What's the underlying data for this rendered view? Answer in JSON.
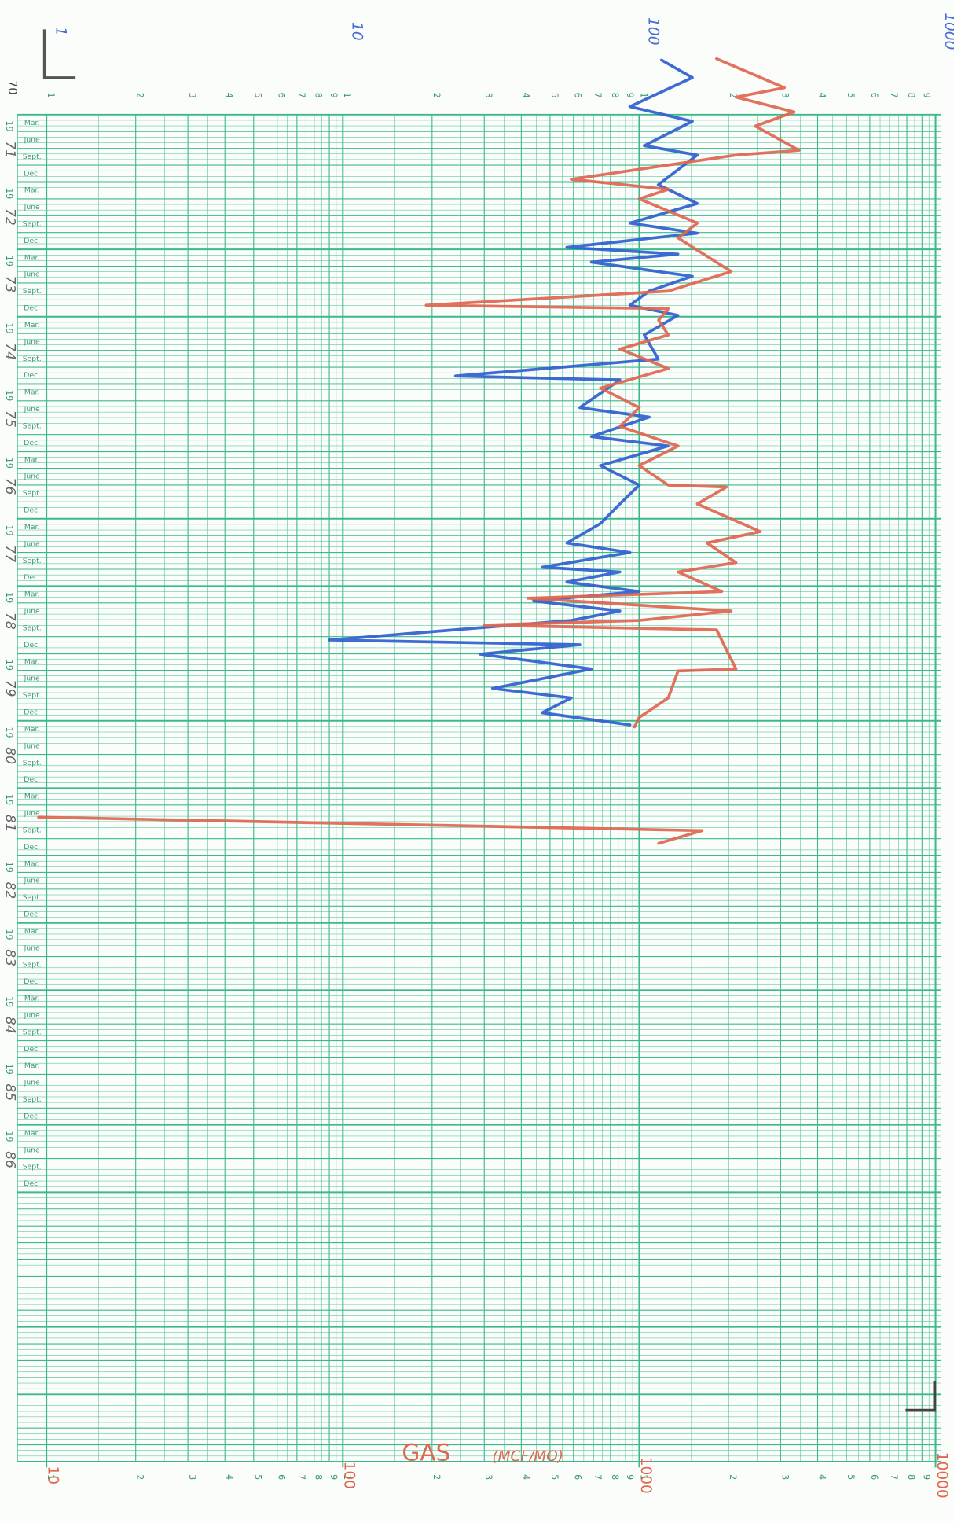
{
  "chart_data": {
    "type": "line",
    "start_label": "70",
    "century": "19",
    "years": [
      "71",
      "72",
      "73",
      "74",
      "75",
      "76",
      "77",
      "78",
      "79",
      "80",
      "81",
      "82",
      "83",
      "84",
      "85",
      "86"
    ],
    "months": [
      "Mar.",
      "June",
      "Sept.",
      "Dec."
    ],
    "x2_label": "GAS",
    "x2_unit": "(MCF/MO)",
    "log_scale": true,
    "grid": true,
    "grid_color": "#3cb98a",
    "xlim": [
      1,
      1000
    ],
    "xticks": [
      1,
      10,
      100,
      1000
    ],
    "x2lim": [
      10,
      10000
    ],
    "x2ticks": [
      10,
      100,
      1000,
      10000
    ],
    "minor_tick_labels": [
      1,
      2,
      3,
      4,
      5,
      6,
      7,
      8,
      9
    ],
    "ylim": [
      1971,
      1991
    ],
    "series": [
      {
        "color": "#2f5fcf",
        "x": [
          1970.19,
          1970.45,
          1970.88,
          1971.1,
          1971.46,
          1971.6,
          1972.04,
          1972.32,
          1972.61,
          1972.76,
          1972.97,
          1973.07,
          1973.19,
          1973.4,
          1973.62,
          1973.83,
          1973.98,
          1974.27,
          1974.63,
          1974.88,
          1974.94,
          1975.35,
          1975.49,
          1975.78,
          1975.92,
          1976.21,
          1976.5,
          1976.78,
          1977.07,
          1977.36,
          1977.5,
          1977.72,
          1977.79,
          1977.94,
          1978.08,
          1978.22,
          1978.37,
          1978.51,
          1978.8,
          1978.87,
          1979.01,
          1979.23,
          1979.52,
          1979.66,
          1979.88,
          1980.06
        ],
        "values": [
          119,
          151,
          93,
          151,
          104,
          157,
          116,
          157,
          93,
          157,
          57,
          135,
          69,
          151,
          108,
          93,
          135,
          104,
          116,
          24,
          86,
          63,
          108,
          69,
          125,
          74,
          100,
          86,
          74,
          57,
          93,
          47,
          86,
          57,
          100,
          44,
          86,
          59,
          9,
          63,
          29,
          69,
          32,
          59,
          47,
          93
        ]
      },
      {
        "color": "#e06650",
        "axis": "x2",
        "x": [
          1970.17,
          1970.6,
          1970.74,
          1970.96,
          1971.17,
          1971.53,
          1971.6,
          1971.96,
          1972.11,
          1972.25,
          1972.61,
          1972.83,
          1973.33,
          1973.62,
          1973.83,
          1973.88,
          1974.05,
          1974.27,
          1974.48,
          1974.77,
          1975.06,
          1975.35,
          1975.63,
          1975.92,
          1976.21,
          1976.5,
          1976.53,
          1976.78,
          1977.19,
          1977.36,
          1977.65,
          1977.79,
          1978.08,
          1978.18,
          1978.37,
          1978.51,
          1978.58,
          1978.65,
          1979.23,
          1979.26,
          1979.66,
          1979.95,
          1980.09,
          null,
          1981.43,
          1981.63,
          1981.82
        ],
        "values": [
          1825,
          3090,
          2120,
          3334,
          2466,
          3460,
          2120,
          590,
          1253,
          1000,
          1571,
          1352,
          2043,
          1253,
          191,
          1253,
          1162,
          1253,
          861,
          1253,
          740,
          1000,
          861,
          1352,
          1000,
          1253,
          1968,
          1571,
          2561,
          1694,
          2120,
          1352,
          1897,
          421,
          2043,
          1000,
          300,
          1825,
          2120,
          1352,
          1253,
          1000,
          963,
          null,
          9.4,
          1630,
          1162
        ]
      }
    ]
  }
}
